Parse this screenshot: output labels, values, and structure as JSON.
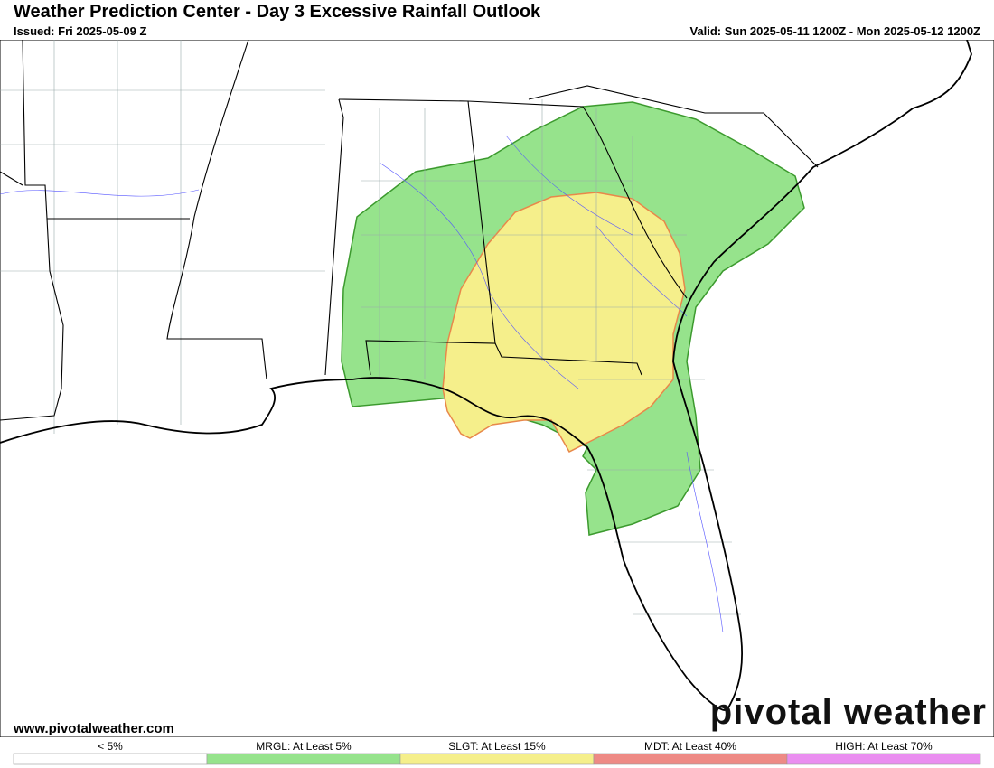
{
  "header": {
    "title": "Weather Prediction Center - Day 3 Excessive Rainfall Outlook",
    "issued": "Issued: Fri 2025-05-09 Z",
    "valid": "Valid: Sun 2025-05-11 1200Z - Mon 2025-05-12 1200Z"
  },
  "footer": {
    "url": "www.pivotalweather.com",
    "logo": "pivotal weather"
  },
  "legend": {
    "items": [
      {
        "label": "< 5%",
        "color": "#ffffff"
      },
      {
        "label": "MRGL: At Least 5%",
        "color": "#96e38c"
      },
      {
        "label": "SLGT: At Least 15%",
        "color": "#f5ef8b"
      },
      {
        "label": "MDT: At Least 40%",
        "color": "#ee8a85"
      },
      {
        "label": "HIGH: At Least 70%",
        "color": "#ea8ef0"
      }
    ]
  }
}
